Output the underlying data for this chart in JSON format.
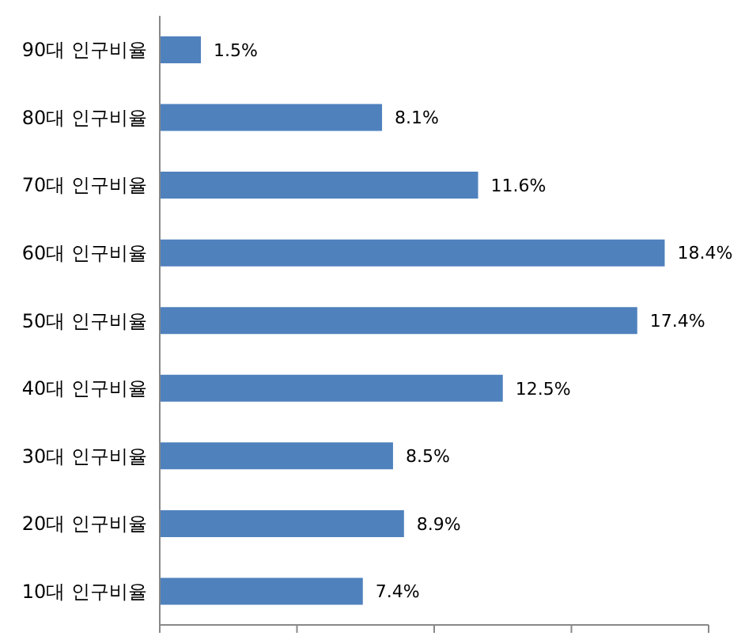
{
  "chart_data": {
    "type": "bar",
    "orientation": "horizontal",
    "categories": [
      "90대 인구비율",
      "80대 인구비율",
      "70대 인구비율",
      "60대 인구비율",
      "50대 인구비율",
      "40대 인구비율",
      "30대 인구비율",
      "20대 인구비율",
      "10대 인구비율"
    ],
    "values": [
      1.5,
      8.1,
      11.6,
      18.4,
      17.4,
      12.5,
      8.5,
      8.9,
      7.4
    ],
    "value_labels": [
      "1.5%",
      "8.1%",
      "11.6%",
      "18.4%",
      "17.4%",
      "12.5%",
      "8.5%",
      "8.9%",
      "7.4%"
    ],
    "color": "#4f81bd",
    "xlim": [
      0,
      20
    ],
    "tick_labels": "y",
    "grid": false,
    "legend": false
  }
}
